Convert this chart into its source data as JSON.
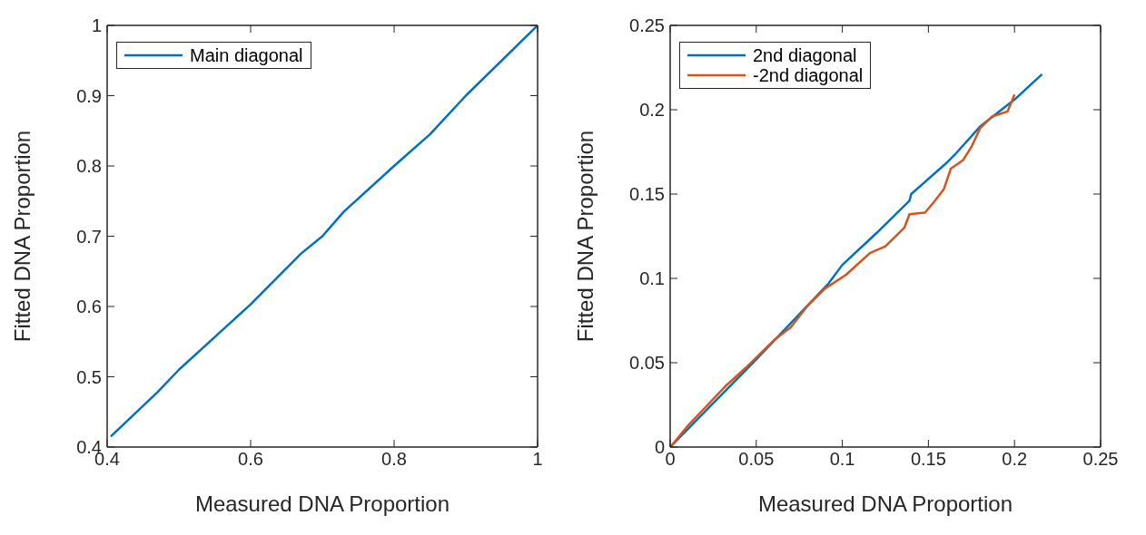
{
  "chart_data": [
    {
      "type": "line",
      "xlabel": "Measured DNA Proportion",
      "ylabel": "Fitted DNA Proportion",
      "xlim": [
        0.4,
        1
      ],
      "ylim": [
        0.4,
        1
      ],
      "xticks": [
        0.4,
        0.6,
        0.8,
        1
      ],
      "yticks": [
        0.4,
        0.5,
        0.6,
        0.7,
        0.8,
        0.9,
        1
      ],
      "legend": "top left",
      "grid": false,
      "series": [
        {
          "name": "Main diagonal",
          "color": "#0072bd",
          "x": [
            0.405,
            0.47,
            0.5,
            0.6,
            0.67,
            0.7,
            0.73,
            0.8,
            0.85,
            0.9,
            1
          ],
          "values": [
            0.415,
            0.478,
            0.51,
            0.603,
            0.675,
            0.7,
            0.735,
            0.8,
            0.845,
            0.9,
            1
          ]
        }
      ]
    },
    {
      "type": "line",
      "xlabel": "Measured DNA Proportion",
      "ylabel": "Fitted DNA Proportion",
      "xlim": [
        0,
        0.25
      ],
      "ylim": [
        0,
        0.25
      ],
      "xticks": [
        0,
        0.05,
        0.1,
        0.15,
        0.2,
        0.25
      ],
      "yticks": [
        0,
        0.05,
        0.1,
        0.15,
        0.2,
        0.25
      ],
      "legend": "top left",
      "grid": false,
      "series": [
        {
          "name": "2nd diagonal",
          "color": "#0072bd",
          "x": [
            0,
            0.05,
            0.092,
            0.1,
            0.12,
            0.139,
            0.14,
            0.16,
            0.165,
            0.18,
            0.2,
            0.216
          ],
          "values": [
            0,
            0.052,
            0.097,
            0.108,
            0.127,
            0.146,
            0.15,
            0.168,
            0.173,
            0.19,
            0.206,
            0.221
          ]
        },
        {
          "name": "-2nd diagonal",
          "color": "#d95319",
          "x": [
            0.001,
            0.0097,
            0.032,
            0.045,
            0.061,
            0.07,
            0.08,
            0.09,
            0.102,
            0.116,
            0.125,
            0.136,
            0.139,
            0.148,
            0.153,
            0.159,
            0.163,
            0.17,
            0.175,
            0.18,
            0.187,
            0.196,
            0.2
          ],
          "values": [
            0.001,
            0.012,
            0.036,
            0.048,
            0.064,
            0.071,
            0.084,
            0.094,
            0.102,
            0.115,
            0.119,
            0.13,
            0.138,
            0.139,
            0.145,
            0.153,
            0.165,
            0.17,
            0.178,
            0.189,
            0.196,
            0.199,
            0.209
          ]
        }
      ]
    }
  ]
}
